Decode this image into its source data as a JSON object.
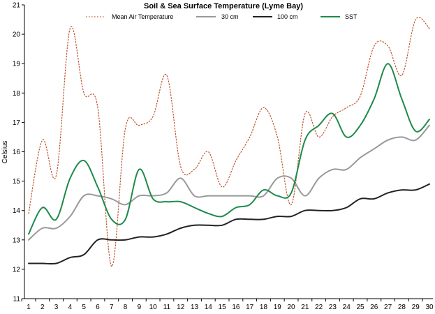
{
  "chart_data": {
    "type": "line",
    "title": "Soil & Sea Surface Temperature (Lyme Bay)",
    "xlabel": "",
    "ylabel": "Celsius",
    "ylim": [
      11,
      21
    ],
    "yticks": [
      11,
      12,
      13,
      14,
      15,
      16,
      17,
      18,
      19,
      20,
      21
    ],
    "x": [
      1,
      2,
      3,
      4,
      5,
      6,
      7,
      8,
      9,
      10,
      11,
      12,
      13,
      14,
      15,
      16,
      17,
      18,
      19,
      20,
      21,
      22,
      23,
      24,
      25,
      26,
      27,
      28,
      29,
      30
    ],
    "grid": false,
    "legend": "top",
    "series": [
      {
        "name": "Mean Air Temperature",
        "style": "dotted",
        "color": "#c0502a",
        "values": [
          13.9,
          16.4,
          15.2,
          20.2,
          18.0,
          17.5,
          12.1,
          16.8,
          16.9,
          17.2,
          18.6,
          15.5,
          15.4,
          16.0,
          14.8,
          15.7,
          16.5,
          17.5,
          16.5,
          14.2,
          17.3,
          16.5,
          17.2,
          17.5,
          17.9,
          19.6,
          19.6,
          18.6,
          20.5,
          20.2
        ]
      },
      {
        "name": "30 cm",
        "style": "solid",
        "color": "#999999",
        "values": [
          13.0,
          13.4,
          13.4,
          13.8,
          14.5,
          14.5,
          14.4,
          14.2,
          14.5,
          14.5,
          14.6,
          15.1,
          14.5,
          14.5,
          14.5,
          14.5,
          14.5,
          14.5,
          15.1,
          15.1,
          14.5,
          15.1,
          15.4,
          15.4,
          15.8,
          16.1,
          16.4,
          16.5,
          16.4,
          16.9
        ]
      },
      {
        "name": "100 cm",
        "style": "solid",
        "color": "#222222",
        "values": [
          12.2,
          12.2,
          12.2,
          12.4,
          12.5,
          13.0,
          13.0,
          13.0,
          13.1,
          13.1,
          13.2,
          13.4,
          13.5,
          13.5,
          13.5,
          13.7,
          13.7,
          13.7,
          13.8,
          13.8,
          14.0,
          14.0,
          14.0,
          14.1,
          14.4,
          14.4,
          14.6,
          14.7,
          14.7,
          14.9
        ]
      },
      {
        "name": "SST",
        "style": "solid",
        "color": "#1e8a4a",
        "values": [
          13.2,
          14.1,
          13.7,
          15.1,
          15.7,
          14.8,
          13.7,
          13.7,
          15.4,
          14.4,
          14.3,
          14.3,
          14.1,
          13.9,
          13.8,
          14.1,
          14.2,
          14.7,
          14.5,
          14.6,
          16.4,
          16.9,
          17.3,
          16.5,
          16.9,
          17.8,
          19.0,
          17.8,
          16.7,
          17.1
        ]
      }
    ]
  }
}
